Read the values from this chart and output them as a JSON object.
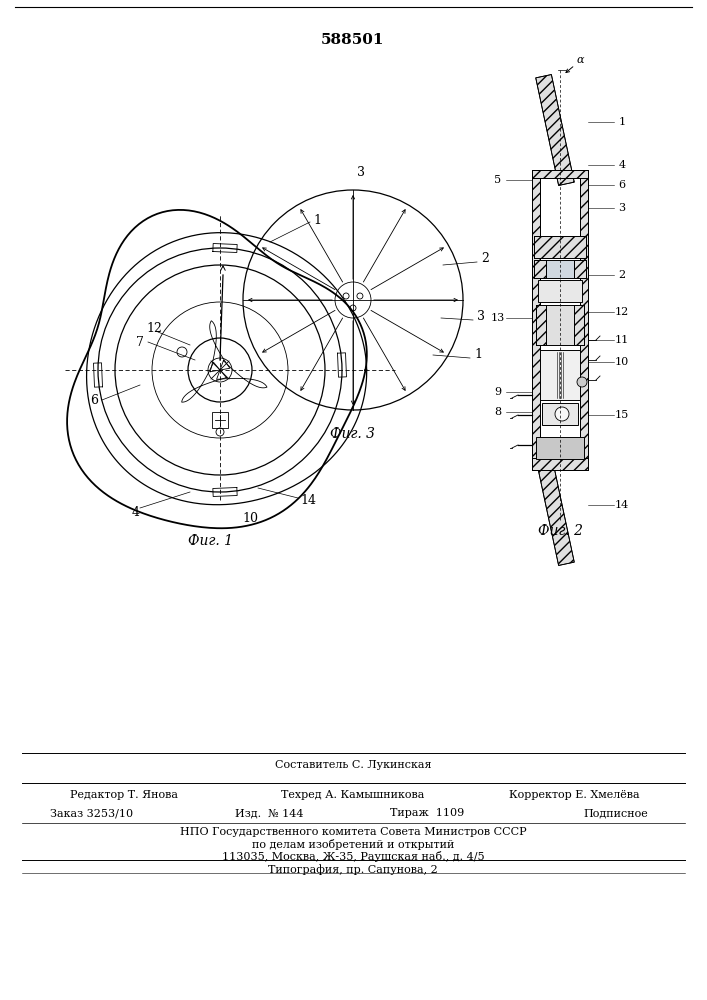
{
  "patent_number": "588501",
  "bg_color": "#ffffff",
  "line_color": "#000000",
  "caption1": "Фиг. 1",
  "caption2": "Фиг. 2",
  "caption3": "Фиг. 3",
  "footer_line1": "Составитель С. Лукинская",
  "footer_col1_label": "Редактор Т. Янова",
  "footer_col2_label": "Техред А. Камышникова",
  "footer_col3_label": "Корректор Е. Хмелёва",
  "footer_line3a": "Заказ 3253/10",
  "footer_line3b": "Изд.  № 144",
  "footer_line3c": "Тираж  1109",
  "footer_line3d": "Подписное",
  "footer_line4": "НПО Государственного комитета Совета Министров СССР",
  "footer_line5": "по делам изобретений и открытий",
  "footer_line6": "113035, Москва, Ж-35, Раушская наб., д. 4/5",
  "footer_line7": "Типография, пр. Сапунова, 2"
}
